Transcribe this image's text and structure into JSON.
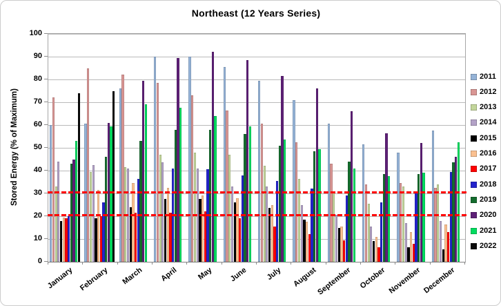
{
  "chart_data": {
    "type": "bar",
    "title": "Northeast (12 Years Series)",
    "xlabel": "",
    "ylabel": "Stored Energy (% of Maximum)",
    "ylim": [
      0,
      100
    ],
    "ytick_step": 10,
    "grid": true,
    "legend_position": "right",
    "categories": [
      "January",
      "February",
      "March",
      "April",
      "May",
      "June",
      "July",
      "August",
      "September",
      "October",
      "November",
      "December"
    ],
    "series": [
      {
        "name": "2011",
        "color": "#95B3D7",
        "values": [
          60,
          60.5,
          76,
          90,
          90,
          85.5,
          79.5,
          71,
          60.5,
          51.5,
          48,
          57.5
        ]
      },
      {
        "name": "2012",
        "color": "#D99694",
        "values": [
          72,
          85,
          82,
          78.5,
          73,
          66.5,
          60.5,
          52.5,
          43,
          34,
          34.5,
          32.5
        ]
      },
      {
        "name": "2013",
        "color": "#C3D69B",
        "values": [
          33,
          39.5,
          41.5,
          47,
          48,
          47,
          42,
          36.5,
          30.5,
          25.5,
          33,
          34
        ]
      },
      {
        "name": "2014",
        "color": "#B3A2C7",
        "values": [
          44,
          42.5,
          41,
          43.5,
          41,
          33,
          33,
          25,
          20.5,
          15.5,
          17,
          18
        ]
      },
      {
        "name": "2015",
        "color": "#000000",
        "values": [
          18,
          19,
          24,
          27.5,
          27.5,
          26,
          23.5,
          18.5,
          15,
          9,
          6.5,
          5.5
        ]
      },
      {
        "name": "2016",
        "color": "#FAC090",
        "values": [
          19.5,
          31.5,
          34.5,
          32.5,
          29,
          28,
          25,
          17.5,
          15.5,
          11,
          13,
          16.5
        ]
      },
      {
        "name": "2017",
        "color": "#FF0000",
        "values": [
          19,
          20,
          21.5,
          21.5,
          22,
          19,
          15.5,
          12,
          9.5,
          6.5,
          8,
          13
        ]
      },
      {
        "name": "2018",
        "color": "#2323CC",
        "values": [
          20,
          26,
          36.5,
          41,
          40.5,
          38,
          35.5,
          32,
          29,
          26,
          31,
          39.5
        ]
      },
      {
        "name": "2019",
        "color": "#146C2E",
        "values": [
          43,
          46,
          53,
          58,
          58,
          56,
          51,
          48.5,
          44,
          38.5,
          38.5,
          43.5
        ]
      },
      {
        "name": "2020",
        "color": "#5E2077",
        "values": [
          45,
          61,
          79.5,
          89.5,
          92,
          88.5,
          81.5,
          76,
          66,
          56.5,
          52,
          46
        ]
      },
      {
        "name": "2021",
        "color": "#00DC5F",
        "values": [
          53,
          59.5,
          69,
          67.5,
          64,
          59.5,
          53.5,
          49.5,
          41,
          37.5,
          39,
          52.5
        ]
      },
      {
        "name": "2022",
        "color": "#0A0A0A",
        "values": [
          74,
          75,
          null,
          null,
          null,
          null,
          null,
          null,
          null,
          null,
          null,
          null
        ]
      }
    ],
    "reference_lines": [
      {
        "value": 30.5,
        "color": "#FF0000",
        "style": "dashed"
      },
      {
        "value": 20.5,
        "color": "#FF0000",
        "style": "dashed"
      }
    ]
  }
}
